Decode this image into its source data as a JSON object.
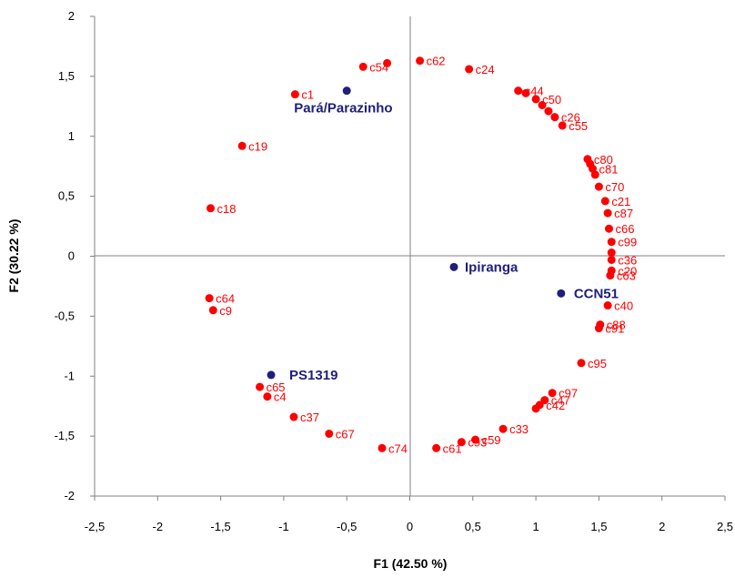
{
  "chart_data": {
    "type": "scatter",
    "xlabel": "F1 (42.50 %)",
    "ylabel": "F2 (30.22 %)",
    "xlim": [
      -2.5,
      2.5
    ],
    "ylim": [
      -2,
      2
    ],
    "x_ticks": [
      "-2,5",
      "-2",
      "-1,5",
      "-1",
      "-0,5",
      "0",
      "0,5",
      "1",
      "1,5",
      "2",
      "2,5"
    ],
    "y_ticks": [
      "2",
      "1,5",
      "1",
      "0,5",
      "0",
      "-0,5",
      "-1",
      "-1,5",
      "-2"
    ],
    "grid": false,
    "colors": {
      "observations": "#ff0000",
      "supplementary": "#1f1f7a"
    },
    "series": [
      {
        "points": [
          {
            "label": "c1",
            "x": -0.91,
            "y": 1.35
          },
          {
            "label": "c54",
            "x": -0.37,
            "y": 1.58
          },
          {
            "label": "",
            "x": -0.18,
            "y": 1.61
          },
          {
            "label": "c62",
            "x": 0.08,
            "y": 1.63
          },
          {
            "label": "c24",
            "x": 0.47,
            "y": 1.56
          },
          {
            "label": "c44",
            "x": 0.86,
            "y": 1.38
          },
          {
            "label": "",
            "x": 0.92,
            "y": 1.36
          },
          {
            "label": "c50",
            "x": 1.0,
            "y": 1.31
          },
          {
            "label": "",
            "x": 1.05,
            "y": 1.26
          },
          {
            "label": "",
            "x": 1.1,
            "y": 1.21
          },
          {
            "label": "c26",
            "x": 1.15,
            "y": 1.16
          },
          {
            "label": "c55",
            "x": 1.21,
            "y": 1.09
          },
          {
            "label": "c19",
            "x": -1.33,
            "y": 0.92
          },
          {
            "label": "c18",
            "x": -1.58,
            "y": 0.4
          },
          {
            "label": "c80",
            "x": 1.41,
            "y": 0.81
          },
          {
            "label": "",
            "x": 1.43,
            "y": 0.77
          },
          {
            "label": "c81",
            "x": 1.45,
            "y": 0.73
          },
          {
            "label": "",
            "x": 1.47,
            "y": 0.68
          },
          {
            "label": "c70",
            "x": 1.5,
            "y": 0.58
          },
          {
            "label": "c21",
            "x": 1.55,
            "y": 0.46
          },
          {
            "label": "c87",
            "x": 1.57,
            "y": 0.36
          },
          {
            "label": "c66",
            "x": 1.58,
            "y": 0.23
          },
          {
            "label": "c99",
            "x": 1.6,
            "y": 0.12
          },
          {
            "label": "",
            "x": 1.6,
            "y": 0.03
          },
          {
            "label": "c36",
            "x": 1.6,
            "y": -0.03
          },
          {
            "label": "c20",
            "x": 1.6,
            "y": -0.12
          },
          {
            "label": "c63",
            "x": 1.59,
            "y": -0.16
          },
          {
            "label": "c64",
            "x": -1.59,
            "y": -0.35
          },
          {
            "label": "c9",
            "x": -1.56,
            "y": -0.45
          },
          {
            "label": "c40",
            "x": 1.57,
            "y": -0.41
          },
          {
            "label": "c88",
            "x": 1.51,
            "y": -0.57
          },
          {
            "label": "c91",
            "x": 1.5,
            "y": -0.6
          },
          {
            "label": "c95",
            "x": 1.36,
            "y": -0.89
          },
          {
            "label": "c97",
            "x": 1.13,
            "y": -1.14
          },
          {
            "label": "c47",
            "x": 1.07,
            "y": -1.2
          },
          {
            "label": "c42",
            "x": 1.03,
            "y": -1.24
          },
          {
            "label": "",
            "x": 1.0,
            "y": -1.27
          },
          {
            "label": "c33",
            "x": 0.74,
            "y": -1.44
          },
          {
            "label": "c59",
            "x": 0.52,
            "y": -1.53
          },
          {
            "label": "c93",
            "x": 0.41,
            "y": -1.55
          },
          {
            "label": "c61",
            "x": 0.21,
            "y": -1.6
          },
          {
            "label": "c74",
            "x": -0.22,
            "y": -1.6
          },
          {
            "label": "c67",
            "x": -0.64,
            "y": -1.48
          },
          {
            "label": "c37",
            "x": -0.92,
            "y": -1.34
          },
          {
            "label": "c65",
            "x": -1.19,
            "y": -1.09
          },
          {
            "label": "c4",
            "x": -1.13,
            "y": -1.17
          }
        ]
      },
      {
        "points": [
          {
            "label": "Pará/Parazinho",
            "x": -0.5,
            "y": 1.38
          },
          {
            "label": "Ipiranga",
            "x": 0.35,
            "y": -0.09
          },
          {
            "label": "CCN51",
            "x": 1.2,
            "y": -0.31
          },
          {
            "label": "PS1319",
            "x": -1.1,
            "y": -0.99
          }
        ]
      }
    ]
  }
}
